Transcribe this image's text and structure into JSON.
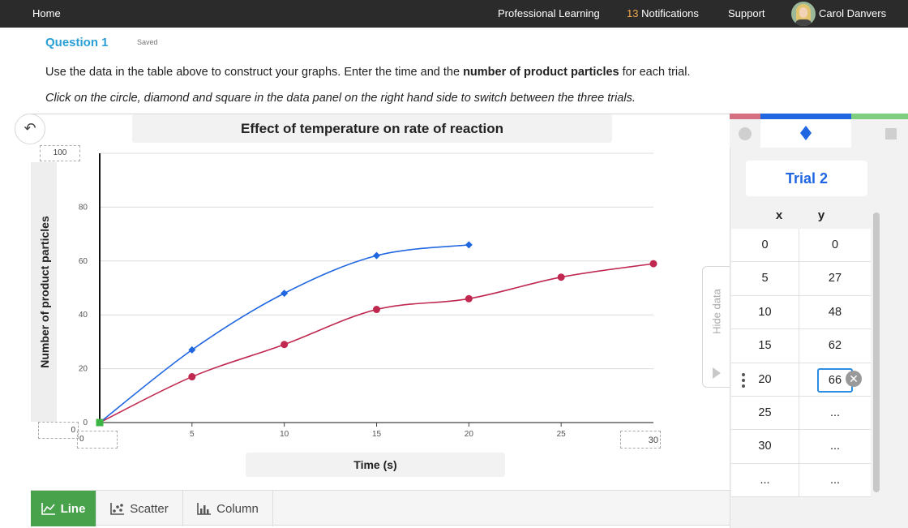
{
  "nav": {
    "home": "Home",
    "professional_learning": "Professional Learning",
    "notifications_count": "13",
    "notifications_label": "Notifications",
    "support": "Support",
    "user_name": "Carol Danvers"
  },
  "question": {
    "title": "Question 1",
    "status": "Saved",
    "instruction_pre": "Use the data in the table above to construct your graphs. Enter the time and the ",
    "instruction_bold": "number of product particles",
    "instruction_post": " for each trial.",
    "instruction_italic": "Click on the circle, diamond and square in the data panel on the right hand side to switch between the three trials."
  },
  "chart_data": {
    "type": "line",
    "title": "Effect of temperature on rate of reaction",
    "xlabel": "Time (s)",
    "ylabel": "Number of product particles",
    "xlim": [
      0,
      30
    ],
    "ylim": [
      0,
      100
    ],
    "x_ticks": [
      "5",
      "10",
      "15",
      "20",
      "25"
    ],
    "y_ticks": [
      "20",
      "40",
      "60",
      "80"
    ],
    "y_max_input": "100",
    "y_min_input": "0",
    "x_min_input": "0",
    "x_max_input": "30",
    "origin_y_label": "0",
    "grid": true,
    "series": [
      {
        "marker": "circle",
        "color": "#c0284f",
        "x": [
          0,
          5,
          10,
          15,
          20,
          25,
          30
        ],
        "y": [
          0,
          17,
          29,
          42,
          46,
          54,
          59
        ]
      },
      {
        "marker": "diamond",
        "color": "#1f66e0",
        "x": [
          0,
          5,
          10,
          15,
          20
        ],
        "y": [
          0,
          27,
          48,
          62,
          66
        ]
      },
      {
        "marker": "square",
        "color": "#3db544",
        "x": [
          0
        ],
        "y": [
          0
        ]
      }
    ]
  },
  "chart_types": {
    "line": "Line",
    "scatter": "Scatter",
    "column": "Column",
    "active": "line"
  },
  "hide_data_label": "Hide data",
  "data_panel": {
    "trial_label": "Trial 2",
    "tab_colors": [
      "#d4707f",
      "#1f66e0",
      "#80cf80"
    ],
    "x_header": "x",
    "y_header": "y",
    "rows": [
      {
        "x": "0",
        "y": "0"
      },
      {
        "x": "5",
        "y": "27"
      },
      {
        "x": "10",
        "y": "48"
      },
      {
        "x": "15",
        "y": "62"
      },
      {
        "x": "20",
        "y": "66"
      },
      {
        "x": "25",
        "y": "..."
      },
      {
        "x": "30",
        "y": "..."
      },
      {
        "x": "...",
        "y": "..."
      }
    ],
    "editing_row": 4
  }
}
